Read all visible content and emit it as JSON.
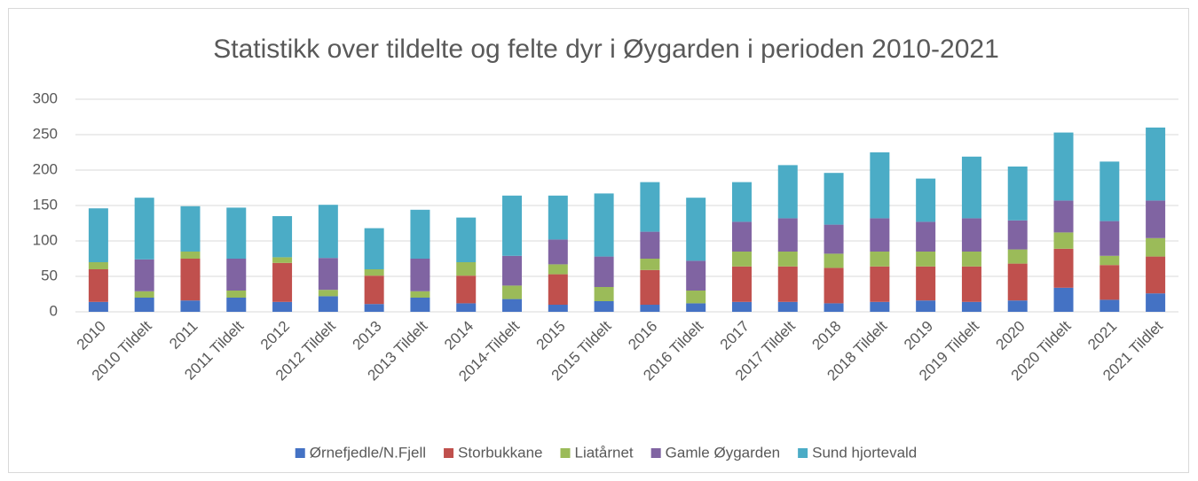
{
  "chart_data": {
    "type": "stacked_bar",
    "title": "Statistikk over tildelte og felte dyr i Øygarden i perioden 2010-2021",
    "categories": [
      "2010",
      "2010 Tildelt",
      "2011",
      "2011 Tildelt",
      "2012",
      "2012 Tildelt",
      "2013",
      "2013 Tildelt",
      "2014",
      "2014-Tildelt",
      "2015",
      "2015 Tildelt",
      "2016",
      "2016 Tildelt",
      "2017",
      "2017 Tildelt",
      "2018",
      "2018 Tildelt",
      "2019",
      "2019 Tildelt",
      "2020",
      "2020 Tildelt",
      "2021",
      "2021 Tildlet"
    ],
    "series": [
      {
        "name": "Ørnefjedle/N.Fjell",
        "color": "#4472c4",
        "values": [
          14,
          20,
          16,
          20,
          14,
          22,
          11,
          20,
          12,
          18,
          10,
          15,
          10,
          12,
          14,
          14,
          12,
          14,
          16,
          14,
          16,
          34,
          17,
          26
        ]
      },
      {
        "name": "Storbukkane",
        "color": "#c0504d",
        "values": [
          46,
          0,
          59,
          0,
          55,
          0,
          40,
          0,
          39,
          0,
          43,
          0,
          49,
          0,
          50,
          50,
          50,
          50,
          48,
          50,
          52,
          55,
          49,
          52
        ]
      },
      {
        "name": "Liatårnet",
        "color": "#9bbb59",
        "values": [
          10,
          9,
          10,
          10,
          8,
          9,
          9,
          9,
          19,
          19,
          14,
          20,
          16,
          18,
          21,
          21,
          20,
          21,
          21,
          21,
          20,
          23,
          13,
          26
        ]
      },
      {
        "name": "Gamle Øygarden",
        "color": "#8064a2",
        "values": [
          0,
          45,
          0,
          45,
          0,
          45,
          0,
          46,
          0,
          42,
          35,
          43,
          38,
          42,
          42,
          47,
          41,
          47,
          42,
          47,
          41,
          45,
          49,
          53
        ]
      },
      {
        "name": "Sund hjortevald",
        "color": "#4bacc6",
        "values": [
          76,
          87,
          64,
          72,
          58,
          75,
          58,
          69,
          63,
          85,
          62,
          89,
          70,
          89,
          56,
          75,
          73,
          93,
          61,
          87,
          76,
          96,
          84,
          103
        ]
      }
    ],
    "ylim": [
      0,
      300
    ],
    "yticks": [
      0,
      50,
      100,
      150,
      200,
      250,
      300
    ],
    "grid": true,
    "legend": "bottom"
  }
}
